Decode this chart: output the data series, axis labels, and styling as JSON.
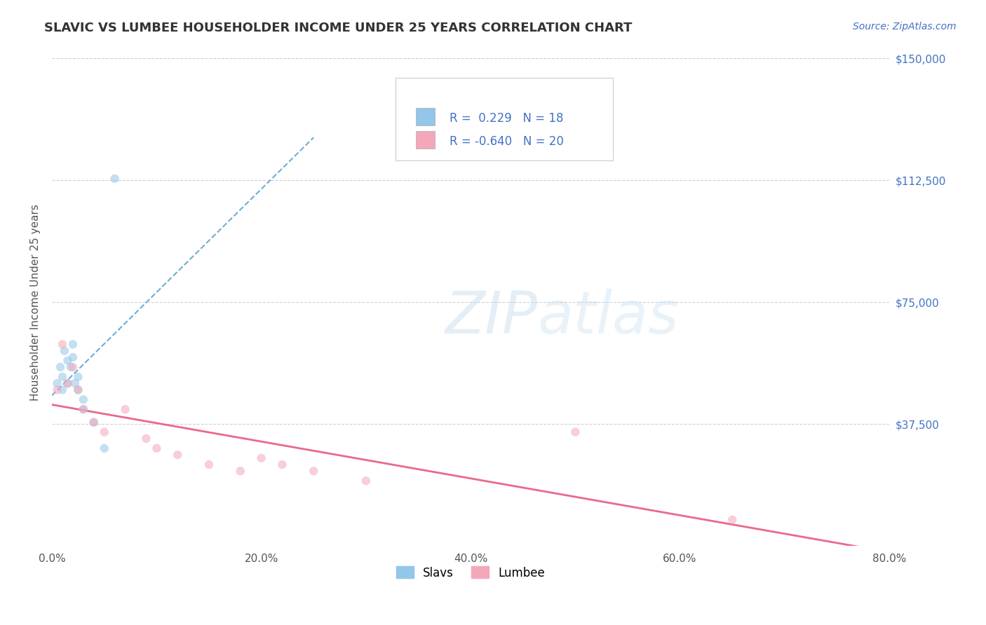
{
  "title": "SLAVIC VS LUMBEE HOUSEHOLDER INCOME UNDER 25 YEARS CORRELATION CHART",
  "source": "Source: ZipAtlas.com",
  "ylabel_label": "Householder Income Under 25 years",
  "xlim": [
    0.0,
    0.8
  ],
  "ylim": [
    0,
    150000
  ],
  "xtick_labels": [
    "0.0%",
    "20.0%",
    "40.0%",
    "60.0%",
    "80.0%"
  ],
  "xtick_values": [
    0.0,
    0.2,
    0.4,
    0.6,
    0.8
  ],
  "ytick_values": [
    0,
    37500,
    75000,
    112500,
    150000
  ],
  "ytick_labels": [
    "",
    "$37,500",
    "$75,000",
    "$112,500",
    "$150,000"
  ],
  "slavs_scatter_color": "#93C6E8",
  "lumbee_scatter_color": "#F4A7B9",
  "slavs_R": 0.229,
  "slavs_N": 18,
  "lumbee_R": -0.64,
  "lumbee_N": 20,
  "slavs_x": [
    0.005,
    0.008,
    0.01,
    0.01,
    0.012,
    0.015,
    0.015,
    0.018,
    0.02,
    0.02,
    0.022,
    0.025,
    0.025,
    0.03,
    0.03,
    0.04,
    0.05,
    0.06
  ],
  "slavs_y": [
    50000,
    55000,
    48000,
    52000,
    60000,
    57000,
    50000,
    55000,
    62000,
    58000,
    50000,
    52000,
    48000,
    45000,
    42000,
    38000,
    30000,
    113000
  ],
  "lumbee_x": [
    0.005,
    0.01,
    0.015,
    0.02,
    0.025,
    0.03,
    0.04,
    0.05,
    0.07,
    0.09,
    0.1,
    0.12,
    0.15,
    0.18,
    0.2,
    0.22,
    0.25,
    0.3,
    0.5,
    0.65
  ],
  "lumbee_y": [
    48000,
    62000,
    50000,
    55000,
    48000,
    42000,
    38000,
    35000,
    42000,
    33000,
    30000,
    28000,
    25000,
    23000,
    27000,
    25000,
    23000,
    20000,
    35000,
    8000
  ],
  "trendline_slavs_color": "#6BAED6",
  "trendline_lumbee_color": "#E8698A",
  "background_color": "#FFFFFF",
  "legend_slavs_label": "Slavs",
  "legend_lumbee_label": "Lumbee",
  "title_color": "#333333",
  "source_color": "#4472C4",
  "axis_label_color": "#555555",
  "ytick_color": "#4472C4",
  "xtick_color": "#555555",
  "legend_r_color": "#4472C4",
  "grid_color": "#CCCCCC",
  "scatter_size": 80,
  "scatter_alpha": 0.55
}
